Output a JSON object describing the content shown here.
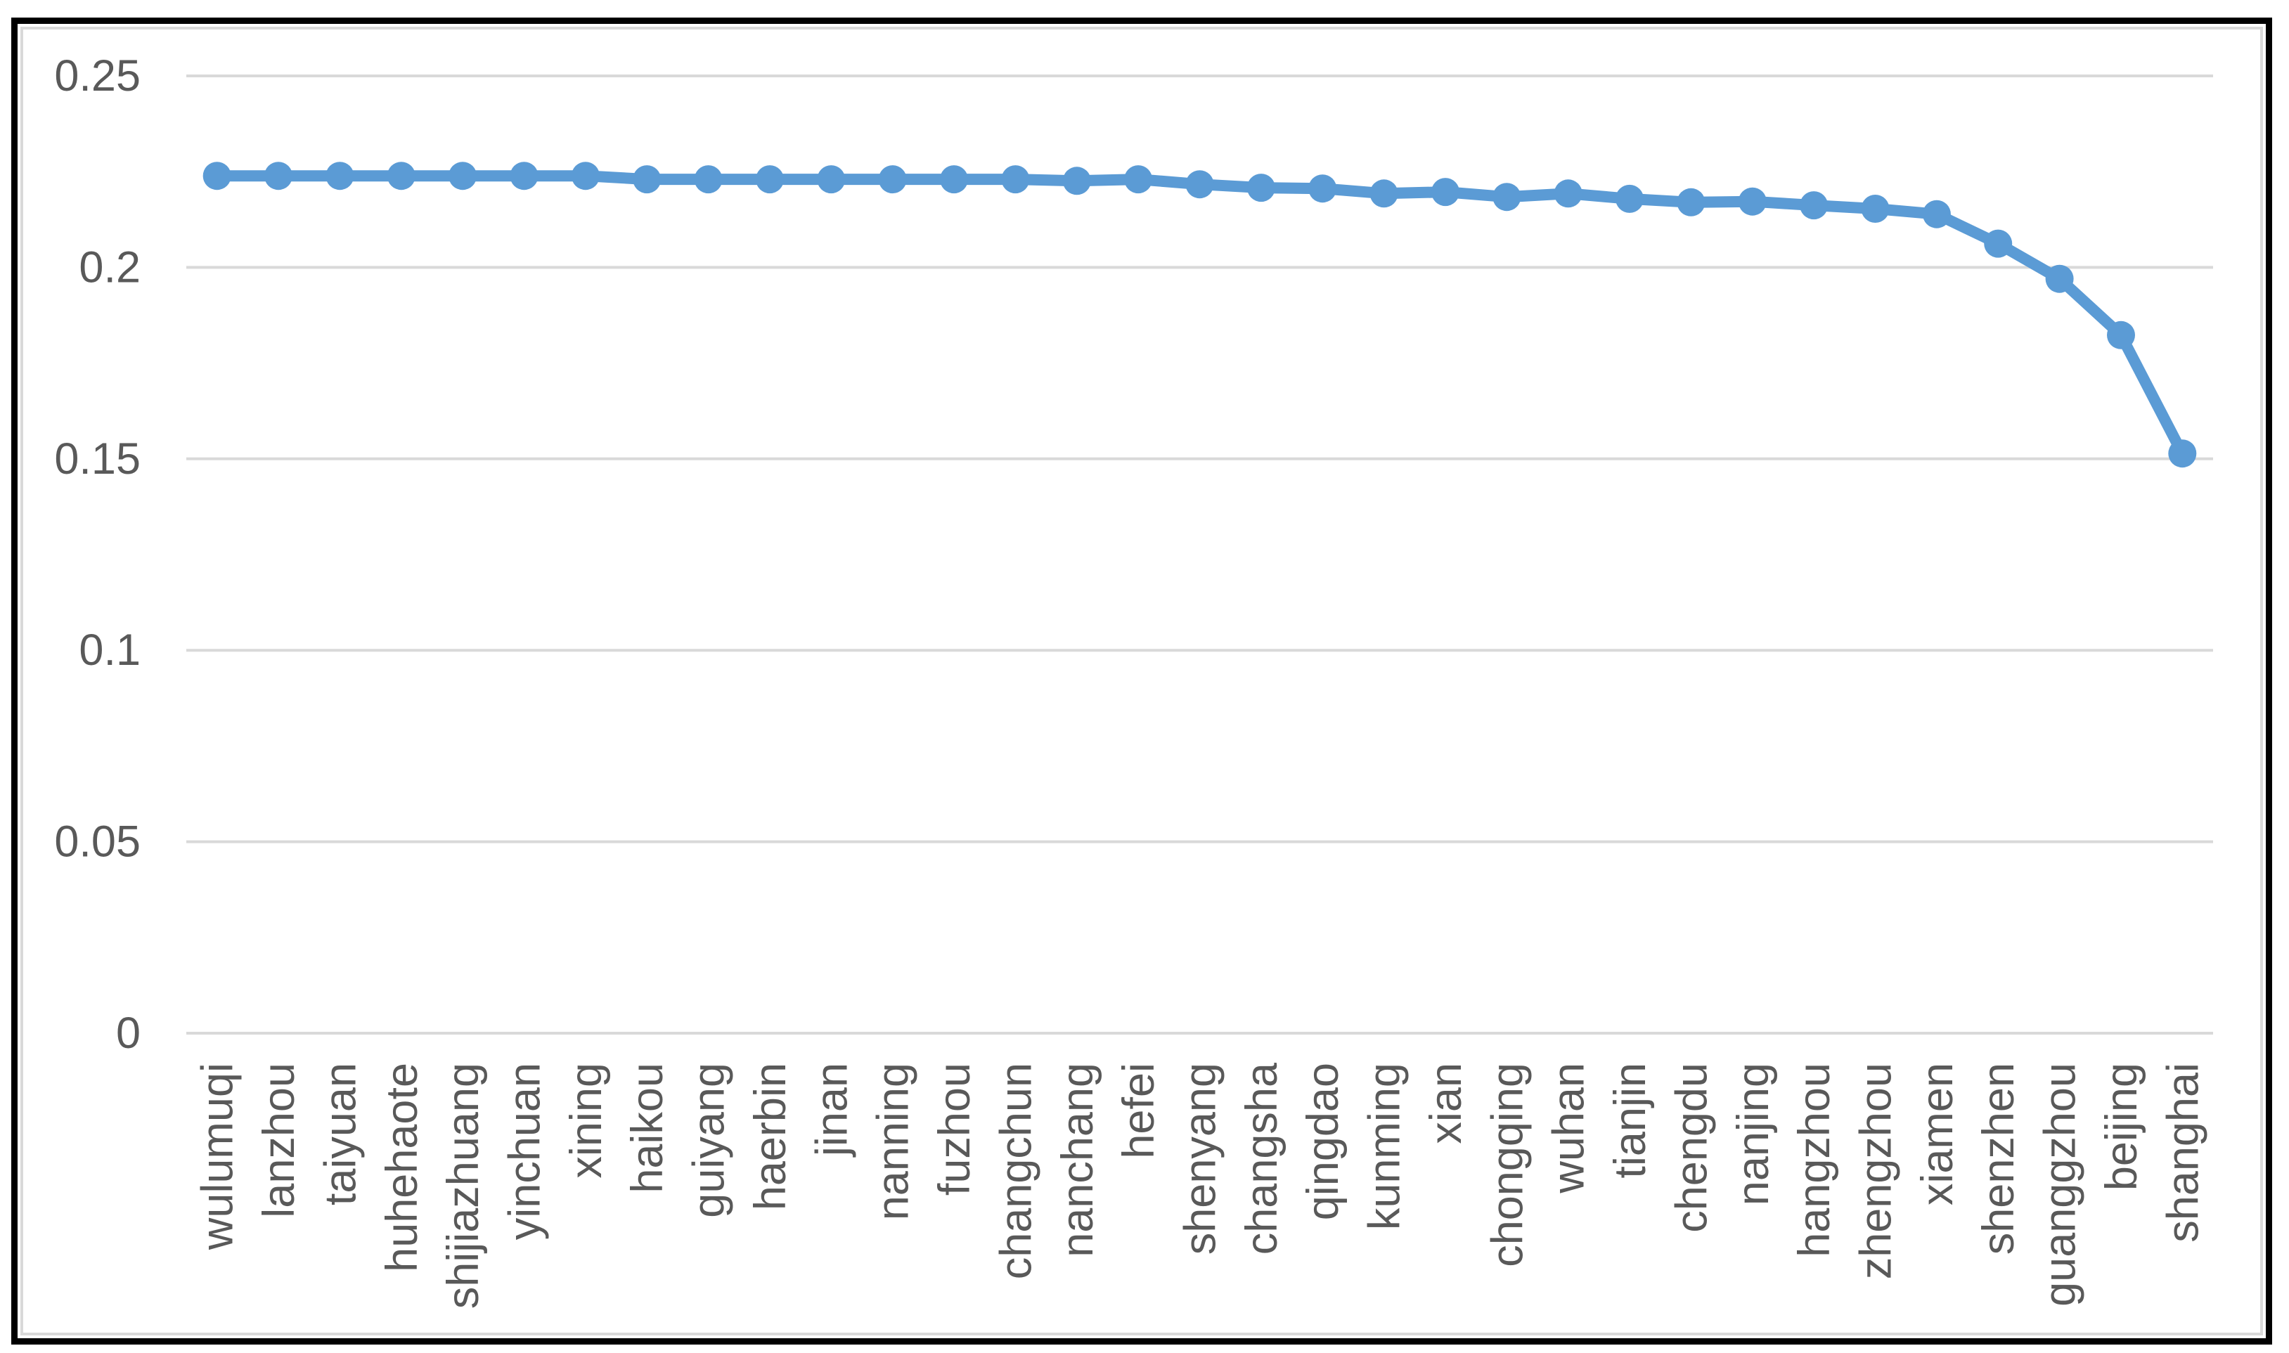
{
  "chart_data": {
    "type": "line",
    "title": "",
    "xlabel": "",
    "ylabel": "",
    "categories": [
      "wulumuqi",
      "lanzhou",
      "taiyuan",
      "huhehaote",
      "shijiazhuang",
      "yinchuan",
      "xining",
      "haikou",
      "guiyang",
      "haerbin",
      "jinan",
      "nanning",
      "fuzhou",
      "changchun",
      "nanchang",
      "hefei",
      "shenyang",
      "changsha",
      "qingdao",
      "kunming",
      "xian",
      "chongqing",
      "wuhan",
      "tianjin",
      "chengdu",
      "nanjing",
      "hangzhou",
      "zhengzhou",
      "xiamen",
      "shenzhen",
      "guanggzhou",
      "beijing",
      "shanghai"
    ],
    "values": [
      0.2239,
      0.2239,
      0.2239,
      0.2239,
      0.2239,
      0.2239,
      0.2239,
      0.223,
      0.223,
      0.223,
      0.223,
      0.223,
      0.223,
      0.223,
      0.2226,
      0.223,
      0.2217,
      0.2208,
      0.2206,
      0.2193,
      0.2197,
      0.2184,
      0.2193,
      0.2179,
      0.217,
      0.2172,
      0.2162,
      0.2153,
      0.2139,
      0.2062,
      0.197,
      0.1823,
      0.1514
    ],
    "ylim": [
      0,
      0.25
    ],
    "y_ticks": [
      0.25,
      0.2,
      0.15,
      0.1,
      0.05,
      0
    ],
    "y_tick_labels": [
      "0.25",
      "0.2",
      "0.15",
      "0.1",
      "0.05",
      "0"
    ],
    "grid": true,
    "gridlines": "horizontal",
    "legend": false,
    "x_label_rotation_degrees": -90,
    "series_color": "#5B9BD5",
    "gridline_color": "#D9D9D9",
    "tick_label_color": "#595959",
    "border_color": "#000000",
    "inner_border_color": "#D9D9D9",
    "background_color": "#FFFFFF"
  }
}
